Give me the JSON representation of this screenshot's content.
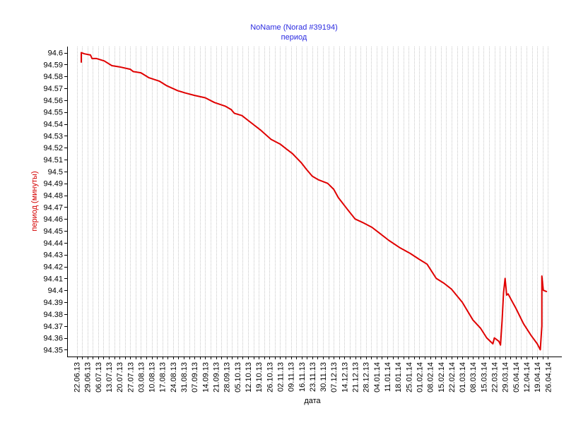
{
  "chart_data": {
    "type": "line",
    "title": "NoName (Norad #39194)",
    "subtitle": "период",
    "xlabel": "дата",
    "ylabel": "период (минуты)",
    "ylim": [
      94.345,
      94.605
    ],
    "grid": "vertical dotted",
    "line_color": "#e00000",
    "title_color": "#2a2ae0",
    "ylabel_color": "#d40000",
    "x_ticks": [
      "22.06.13",
      "29.06.13",
      "06.07.13",
      "13.07.13",
      "20.07.13",
      "27.07.13",
      "03.08.13",
      "10.08.13",
      "17.08.13",
      "24.08.13",
      "31.08.13",
      "07.09.13",
      "14.09.13",
      "21.09.13",
      "28.09.13",
      "05.10.13",
      "12.10.13",
      "19.10.13",
      "26.10.13",
      "02.11.13",
      "09.11.13",
      "16.11.13",
      "23.11.13",
      "30.11.13",
      "07.12.13",
      "14.12.13",
      "21.12.13",
      "28.12.13",
      "04.01.14",
      "11.01.14",
      "18.01.14",
      "25.01.14",
      "01.02.14",
      "08.02.14",
      "15.02.14",
      "22.02.14",
      "01.03.14",
      "08.03.14",
      "15.03.14",
      "22.03.14",
      "29.03.14",
      "05.04.14",
      "12.04.14",
      "19.04.14",
      "26.04.14"
    ],
    "y_ticks": [
      "94.6",
      "94.59",
      "94.58",
      "94.57",
      "94.56",
      "94.55",
      "94.54",
      "94.53",
      "94.52",
      "94.51",
      "94.5",
      "94.49",
      "94.48",
      "94.47",
      "94.46",
      "94.45",
      "94.44",
      "94.43",
      "94.42",
      "94.41",
      "94.4",
      "94.39",
      "94.38",
      "94.37",
      "94.36",
      "94.35"
    ],
    "series": [
      {
        "points": [
          [
            "2013-06-25",
            94.592
          ],
          [
            "2013-06-25",
            94.6
          ],
          [
            "2013-06-27",
            94.599
          ],
          [
            "2013-07-01",
            94.598
          ],
          [
            "2013-07-02",
            94.595
          ],
          [
            "2013-07-05",
            94.595
          ],
          [
            "2013-07-10",
            94.593
          ],
          [
            "2013-07-15",
            94.589
          ],
          [
            "2013-07-20",
            94.588
          ],
          [
            "2013-07-27",
            94.586
          ],
          [
            "2013-07-29",
            94.584
          ],
          [
            "2013-08-03",
            94.583
          ],
          [
            "2013-08-08",
            94.579
          ],
          [
            "2013-08-15",
            94.576
          ],
          [
            "2013-08-20",
            94.572
          ],
          [
            "2013-08-27",
            94.568
          ],
          [
            "2013-09-01",
            94.566
          ],
          [
            "2013-09-07",
            94.564
          ],
          [
            "2013-09-14",
            94.562
          ],
          [
            "2013-09-20",
            94.558
          ],
          [
            "2013-09-27",
            94.555
          ],
          [
            "2013-10-01",
            94.552
          ],
          [
            "2013-10-03",
            94.549
          ],
          [
            "2013-10-08",
            94.547
          ],
          [
            "2013-10-12",
            94.543
          ],
          [
            "2013-10-20",
            94.535
          ],
          [
            "2013-10-27",
            94.527
          ],
          [
            "2013-11-02",
            94.523
          ],
          [
            "2013-11-06",
            94.519
          ],
          [
            "2013-11-10",
            94.515
          ],
          [
            "2013-11-16",
            94.507
          ],
          [
            "2013-11-19",
            94.502
          ],
          [
            "2013-11-23",
            94.496
          ],
          [
            "2013-11-27",
            94.493
          ],
          [
            "2013-12-03",
            94.49
          ],
          [
            "2013-12-07",
            94.485
          ],
          [
            "2013-12-10",
            94.478
          ],
          [
            "2013-12-16",
            94.468
          ],
          [
            "2013-12-21",
            94.46
          ],
          [
            "2013-12-26",
            94.457
          ],
          [
            "2014-01-01",
            94.453
          ],
          [
            "2014-01-05",
            94.449
          ],
          [
            "2014-01-12",
            94.442
          ],
          [
            "2014-01-19",
            94.436
          ],
          [
            "2014-01-26",
            94.431
          ],
          [
            "2014-02-01",
            94.426
          ],
          [
            "2014-02-06",
            94.422
          ],
          [
            "2014-02-12",
            94.41
          ],
          [
            "2014-02-17",
            94.406
          ],
          [
            "2014-02-22",
            94.401
          ],
          [
            "2014-03-01",
            94.39
          ],
          [
            "2014-03-08",
            94.375
          ],
          [
            "2014-03-13",
            94.368
          ],
          [
            "2014-03-17",
            94.36
          ],
          [
            "2014-03-21",
            94.355
          ],
          [
            "2014-03-22",
            94.36
          ],
          [
            "2014-03-25",
            94.357
          ],
          [
            "2014-03-26",
            94.354
          ],
          [
            "2014-03-27",
            94.374
          ],
          [
            "2014-03-28",
            94.398
          ],
          [
            "2014-03-29",
            94.41
          ],
          [
            "2014-03-30",
            94.396
          ],
          [
            "2014-03-31",
            94.397
          ],
          [
            "2014-04-02",
            94.392
          ],
          [
            "2014-04-05",
            94.385
          ],
          [
            "2014-04-10",
            94.372
          ],
          [
            "2014-04-15",
            94.362
          ],
          [
            "2014-04-19",
            94.355
          ],
          [
            "2014-04-21",
            94.35
          ],
          [
            "2014-04-22",
            94.37
          ],
          [
            "2014-04-22",
            94.412
          ],
          [
            "2014-04-23",
            94.4
          ],
          [
            "2014-04-25",
            94.399
          ]
        ]
      }
    ]
  }
}
